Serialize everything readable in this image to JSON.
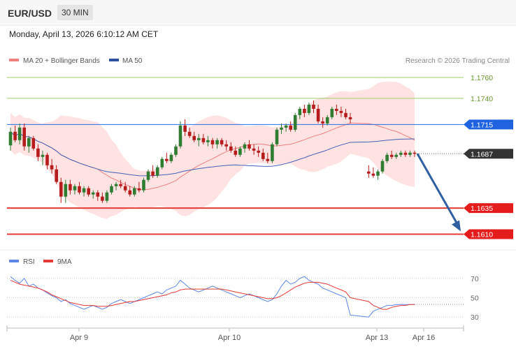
{
  "header": {
    "symbol": "EUR/USD",
    "timeframe": "30 MIN",
    "datetime": "Monday, April 13, 2026 6:10:12 AM CET"
  },
  "legend": {
    "ma20_label": "MA 20 + Bollinger Bands",
    "ma50_label": "MA 50",
    "copyright": "Research © 2026 Trading Central"
  },
  "colors": {
    "bull": "#2e7d32",
    "bear": "#b71c1c",
    "ma20": "#f08080",
    "ma50": "#4361b8",
    "band_fill": "#ffd6d6",
    "resistance": "#9ccc65",
    "pivot": "#2a6ee8",
    "support": "#e53935",
    "arrow": "#2f5fa0",
    "rsi": "#5b86e5",
    "rsi_ma": "#e53935"
  },
  "chart_data": [
    {
      "type": "candlestick",
      "title": "EUR/USD",
      "x_ticks": [
        "Apr 9",
        "Apr 10",
        "Apr 13",
        "Apr 16"
      ],
      "ylim": [
        1.1595,
        1.177
      ],
      "levels": [
        {
          "label": "1.1760",
          "value": 1.176,
          "kind": "resistance"
        },
        {
          "label": "1.1740",
          "value": 1.174,
          "kind": "resistance"
        },
        {
          "label": "1.1715",
          "value": 1.1715,
          "kind": "pivot"
        },
        {
          "label": "1.1687",
          "value": 1.1687,
          "kind": "last"
        },
        {
          "label": "1.1635",
          "value": 1.1635,
          "kind": "support"
        },
        {
          "label": "1.1610",
          "value": 1.161,
          "kind": "support"
        }
      ],
      "forecast_arrow": {
        "from": 1.1687,
        "to": 1.161
      },
      "ohlc": [
        [
          1.1695,
          1.1712,
          1.169,
          1.1708
        ],
        [
          1.1708,
          1.1714,
          1.1698,
          1.17
        ],
        [
          1.17,
          1.1716,
          1.1696,
          1.1712
        ],
        [
          1.1712,
          1.1716,
          1.169,
          1.1694
        ],
        [
          1.1694,
          1.1704,
          1.1688,
          1.1702
        ],
        [
          1.1702,
          1.1704,
          1.169,
          1.1692
        ],
        [
          1.1692,
          1.1696,
          1.168,
          1.1684
        ],
        [
          1.1684,
          1.169,
          1.1676,
          1.1686
        ],
        [
          1.1686,
          1.1688,
          1.1672,
          1.1676
        ],
        [
          1.1676,
          1.1682,
          1.1668,
          1.1672
        ],
        [
          1.1672,
          1.1676,
          1.1658,
          1.166
        ],
        [
          1.166,
          1.1664,
          1.164,
          1.1646
        ],
        [
          1.1646,
          1.1662,
          1.164,
          1.1658
        ],
        [
          1.1658,
          1.1662,
          1.1648,
          1.1652
        ],
        [
          1.1652,
          1.1658,
          1.1648,
          1.1656
        ],
        [
          1.1656,
          1.166,
          1.1648,
          1.165
        ],
        [
          1.165,
          1.1656,
          1.1646,
          1.1654
        ],
        [
          1.1654,
          1.1656,
          1.1646,
          1.1648
        ],
        [
          1.1648,
          1.1652,
          1.1644,
          1.165
        ],
        [
          1.165,
          1.1652,
          1.1642,
          1.1646
        ],
        [
          1.1646,
          1.165,
          1.164,
          1.1642
        ],
        [
          1.1642,
          1.1652,
          1.164,
          1.165
        ],
        [
          1.165,
          1.1658,
          1.1648,
          1.1656
        ],
        [
          1.1656,
          1.166,
          1.1652,
          1.1658
        ],
        [
          1.1658,
          1.1662,
          1.1654,
          1.1656
        ],
        [
          1.1656,
          1.166,
          1.165,
          1.1652
        ],
        [
          1.1652,
          1.1656,
          1.1646,
          1.1648
        ],
        [
          1.1648,
          1.1656,
          1.1646,
          1.1654
        ],
        [
          1.1654,
          1.166,
          1.165,
          1.1652
        ],
        [
          1.1652,
          1.1664,
          1.165,
          1.1662
        ],
        [
          1.1662,
          1.1672,
          1.166,
          1.167
        ],
        [
          1.167,
          1.1676,
          1.1664,
          1.1666
        ],
        [
          1.1666,
          1.1676,
          1.1664,
          1.1674
        ],
        [
          1.1674,
          1.1684,
          1.1672,
          1.1682
        ],
        [
          1.1682,
          1.1688,
          1.1678,
          1.168
        ],
        [
          1.168,
          1.1688,
          1.1678,
          1.1686
        ],
        [
          1.1686,
          1.1696,
          1.1684,
          1.1694
        ],
        [
          1.1694,
          1.1718,
          1.1692,
          1.1714
        ],
        [
          1.1714,
          1.172,
          1.1704,
          1.1708
        ],
        [
          1.1708,
          1.1712,
          1.1702,
          1.1704
        ],
        [
          1.1704,
          1.1708,
          1.1698,
          1.17
        ],
        [
          1.17,
          1.1706,
          1.1694,
          1.1702
        ],
        [
          1.1702,
          1.1706,
          1.1696,
          1.1698
        ],
        [
          1.1698,
          1.1704,
          1.1694,
          1.17
        ],
        [
          1.17,
          1.1702,
          1.1692,
          1.1696
        ],
        [
          1.1696,
          1.1702,
          1.1692,
          1.17
        ],
        [
          1.17,
          1.1702,
          1.1694,
          1.1696
        ],
        [
          1.1696,
          1.17,
          1.169,
          1.1694
        ],
        [
          1.1694,
          1.1698,
          1.1688,
          1.169
        ],
        [
          1.169,
          1.1694,
          1.1684,
          1.1686
        ],
        [
          1.1686,
          1.1694,
          1.1684,
          1.1692
        ],
        [
          1.1692,
          1.1698,
          1.1688,
          1.1696
        ],
        [
          1.1696,
          1.17,
          1.169,
          1.1692
        ],
        [
          1.1692,
          1.1696,
          1.1686,
          1.169
        ],
        [
          1.169,
          1.1694,
          1.1684,
          1.1688
        ],
        [
          1.1688,
          1.1692,
          1.168,
          1.1682
        ],
        [
          1.1682,
          1.1688,
          1.1678,
          1.168
        ],
        [
          1.168,
          1.1698,
          1.1678,
          1.1696
        ],
        [
          1.1696,
          1.1712,
          1.1694,
          1.171
        ],
        [
          1.171,
          1.1716,
          1.1706,
          1.1712
        ],
        [
          1.1712,
          1.1716,
          1.1708,
          1.1714
        ],
        [
          1.1714,
          1.1718,
          1.1708,
          1.171
        ],
        [
          1.171,
          1.1726,
          1.1708,
          1.1724
        ],
        [
          1.1724,
          1.1732,
          1.172,
          1.173
        ],
        [
          1.173,
          1.1734,
          1.1722,
          1.1726
        ],
        [
          1.1726,
          1.1736,
          1.1724,
          1.1734
        ],
        [
          1.1734,
          1.1738,
          1.1726,
          1.173
        ],
        [
          1.173,
          1.1734,
          1.1716,
          1.1718
        ],
        [
          1.1718,
          1.1722,
          1.1712,
          1.1716
        ],
        [
          1.1716,
          1.1724,
          1.1714,
          1.1722
        ],
        [
          1.1722,
          1.1732,
          1.172,
          1.173
        ],
        [
          1.173,
          1.1734,
          1.1724,
          1.1728
        ],
        [
          1.1728,
          1.1732,
          1.1722,
          1.1726
        ],
        [
          1.1726,
          1.173,
          1.172,
          1.1722
        ],
        [
          1.1722,
          1.1726,
          1.1716,
          1.172
        ],
        [
          1.167,
          1.1676,
          1.1664,
          1.1668
        ],
        [
          1.1668,
          1.1674,
          1.1664,
          1.1666
        ],
        [
          1.1666,
          1.1672,
          1.1662,
          1.167
        ],
        [
          1.167,
          1.1682,
          1.1668,
          1.168
        ],
        [
          1.168,
          1.1688,
          1.1678,
          1.1686
        ],
        [
          1.1686,
          1.169,
          1.1682,
          1.1684
        ],
        [
          1.1684,
          1.1688,
          1.1682,
          1.1686
        ],
        [
          1.1686,
          1.169,
          1.1684,
          1.1688
        ],
        [
          1.1688,
          1.169,
          1.1684,
          1.1686
        ],
        [
          1.1686,
          1.169,
          1.1684,
          1.1688
        ],
        [
          1.1688,
          1.169,
          1.1684,
          1.1687
        ]
      ]
    },
    {
      "type": "line",
      "title": "RSI",
      "series": [
        {
          "name": "RSI",
          "values": [
            72,
            68,
            65,
            70,
            62,
            64,
            60,
            58,
            55,
            52,
            50,
            46,
            48,
            44,
            42,
            40,
            38,
            40,
            42,
            40,
            38,
            40,
            44,
            46,
            48,
            46,
            44,
            46,
            48,
            50,
            52,
            54,
            56,
            54,
            58,
            60,
            62,
            68,
            64,
            60,
            58,
            56,
            58,
            60,
            62,
            60,
            58,
            56,
            54,
            52,
            50,
            52,
            54,
            52,
            50,
            48,
            46,
            48,
            54,
            62,
            68,
            64,
            66,
            70,
            72,
            68,
            66,
            64,
            60,
            58,
            56,
            54,
            52,
            50,
            32,
            30,
            36,
            38,
            40,
            42,
            42,
            43,
            43,
            43,
            43,
            43
          ]
        },
        {
          "name": "9MA",
          "values": [
            68,
            66,
            64,
            63,
            62,
            61,
            60,
            58,
            56,
            53,
            51,
            49,
            47,
            45,
            44,
            43,
            42,
            42,
            42,
            41,
            41,
            41,
            42,
            43,
            44,
            45,
            46,
            46,
            47,
            48,
            49,
            50,
            51,
            52,
            53,
            55,
            56,
            58,
            59,
            59,
            59,
            59,
            59,
            59,
            59,
            59,
            59,
            58,
            57,
            56,
            55,
            54,
            53,
            52,
            51,
            50,
            49,
            49,
            50,
            52,
            55,
            58,
            61,
            63,
            65,
            66,
            66,
            66,
            65,
            64,
            62,
            60,
            58,
            56,
            50,
            46,
            42,
            40,
            38,
            38,
            40,
            41,
            42,
            42,
            43,
            43
          ]
        }
      ],
      "ylim": [
        20,
        80
      ],
      "y_ticks": [
        "70",
        "50",
        "30"
      ]
    }
  ]
}
